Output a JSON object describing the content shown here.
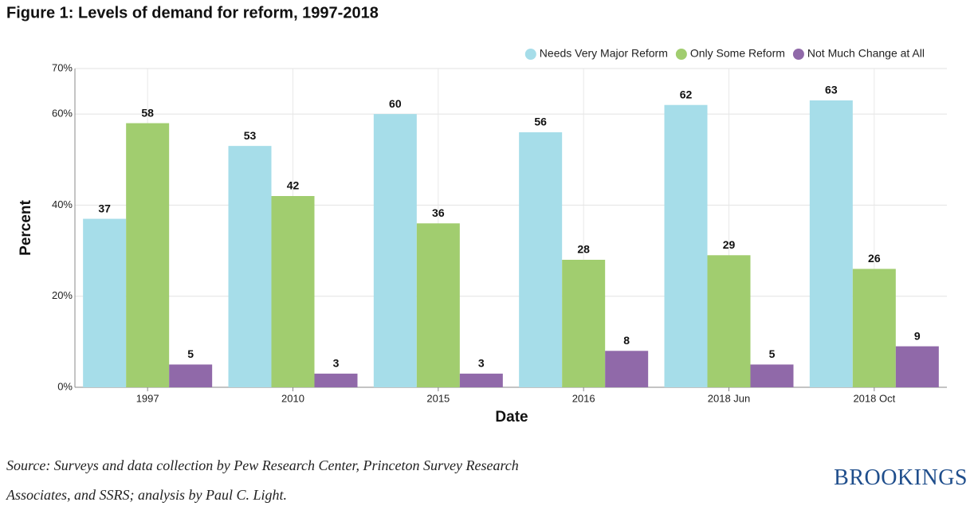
{
  "chart_data": {
    "type": "bar",
    "title": "Figure 1: Levels of demand for reform, 1997-2018",
    "x_label": "Date",
    "y_label": "Percent",
    "categories": [
      "1997",
      "2010",
      "2015",
      "2016",
      "2018 Jun",
      "2018 Oct"
    ],
    "series": [
      {
        "name": "Needs Very Major Reform",
        "color": "#a6dde9",
        "values": [
          37,
          53,
          60,
          56,
          62,
          63
        ]
      },
      {
        "name": "Only Some Reform",
        "color": "#a1cd6f",
        "values": [
          58,
          42,
          36,
          28,
          29,
          26
        ]
      },
      {
        "name": "Not Much Change at All",
        "color": "#9069a9",
        "values": [
          5,
          3,
          3,
          8,
          5,
          9
        ]
      }
    ],
    "ylim": [
      0,
      70
    ],
    "yticks": [
      {
        "value": 0,
        "label": "0%"
      },
      {
        "value": 20,
        "label": "20%"
      },
      {
        "value": 40,
        "label": "40%"
      },
      {
        "value": 60,
        "label": "60%"
      },
      {
        "value": 70,
        "label": "70%"
      }
    ],
    "grid": true,
    "legend": "top-right"
  },
  "footer": {
    "source": "Source: Surveys and data collection by Pew Research Center, Princeton Survey Research Associates, and SSRS; analysis by Paul C. Light.",
    "logo": "BROOKINGS"
  }
}
